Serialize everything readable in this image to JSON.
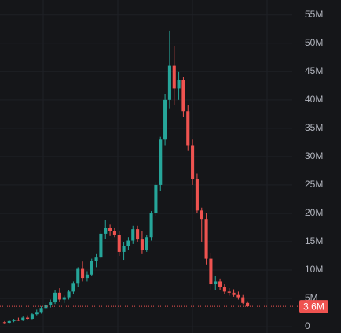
{
  "chart_data": {
    "type": "candlestick",
    "up_color": "#26a69a",
    "down_color": "#ef5350",
    "grid": true,
    "ylim": [
      -1100000,
      57600000
    ],
    "yticks": [
      {
        "value": 0,
        "label": "0"
      },
      {
        "value": 5000000,
        "label": "5M"
      },
      {
        "value": 10000000,
        "label": "10M"
      },
      {
        "value": 15000000,
        "label": "15M"
      },
      {
        "value": 20000000,
        "label": "20M"
      },
      {
        "value": 25000000,
        "label": "25M"
      },
      {
        "value": 30000000,
        "label": "30M"
      },
      {
        "value": 35000000,
        "label": "35M"
      },
      {
        "value": 40000000,
        "label": "40M"
      },
      {
        "value": 45000000,
        "label": "45M"
      },
      {
        "value": 50000000,
        "label": "50M"
      },
      {
        "value": 55000000,
        "label": "55M"
      }
    ],
    "last_price": {
      "value": 3600000,
      "label": "3.6M"
    },
    "open": [
      800000,
      700000,
      1000000,
      1200000,
      1100000,
      1600000,
      1400000,
      2200000,
      2600000,
      3300000,
      3800000,
      4300000,
      6000000,
      4800000,
      5200000,
      6200000,
      7600000,
      10200000,
      8600000,
      9200000,
      11600000,
      12200000,
      16400000,
      17400000,
      16800000,
      16200000,
      13200000,
      14200000,
      15200000,
      17200000,
      15400000,
      13600000,
      15800000,
      20000000,
      25000000,
      33000000,
      40000000,
      46000000,
      42000000,
      43500000,
      38000000,
      32000000,
      26000000,
      20500000,
      19000000,
      12000000,
      7500000,
      8000000,
      7000000,
      6200000,
      6000000,
      5600000,
      5200000,
      4200000
    ],
    "high": [
      1000000,
      1200000,
      1400000,
      1600000,
      1800000,
      2000000,
      2400000,
      3000000,
      3600000,
      4200000,
      4800000,
      6500000,
      6800000,
      5500000,
      6400000,
      8000000,
      10500000,
      11500000,
      9800000,
      12000000,
      12800000,
      17000000,
      18800000,
      18000000,
      17500000,
      16800000,
      15000000,
      15800000,
      17800000,
      17800000,
      16800000,
      16200000,
      20400000,
      25500000,
      33500000,
      41000000,
      52200000,
      49500000,
      45000000,
      44000000,
      39000000,
      33000000,
      27000000,
      21000000,
      20000000,
      13000000,
      9000000,
      8500000,
      7500000,
      6800000,
      6600000,
      6200000,
      5600000,
      4500000
    ],
    "low": [
      500000,
      600000,
      800000,
      1000000,
      1000000,
      1300000,
      1300000,
      2000000,
      2300000,
      3000000,
      3400000,
      4000000,
      4400000,
      4200000,
      4800000,
      5800000,
      7000000,
      8000000,
      8000000,
      9000000,
      10500000,
      12000000,
      15500000,
      16000000,
      15800000,
      12500000,
      11800000,
      13500000,
      14600000,
      15000000,
      12800000,
      13200000,
      15200000,
      19500000,
      24000000,
      32000000,
      38500000,
      39000000,
      40000000,
      37000000,
      31000000,
      25000000,
      20000000,
      15000000,
      11000000,
      6500000,
      6500000,
      6500000,
      5800000,
      5500000,
      5300000,
      4800000,
      4000000,
      3500000
    ],
    "close": [
      700000,
      1000000,
      1200000,
      1100000,
      1600000,
      1400000,
      2200000,
      2600000,
      3300000,
      3800000,
      4300000,
      6000000,
      4800000,
      5200000,
      6200000,
      7600000,
      10200000,
      8600000,
      9200000,
      11600000,
      12200000,
      16400000,
      17400000,
      16800000,
      16200000,
      13200000,
      14200000,
      15200000,
      17200000,
      15400000,
      13600000,
      15800000,
      20000000,
      25000000,
      33000000,
      40000000,
      46000000,
      42000000,
      43500000,
      38000000,
      32000000,
      26000000,
      20500000,
      19000000,
      12000000,
      7500000,
      8000000,
      7000000,
      6200000,
      6000000,
      5600000,
      5200000,
      4200000,
      3600000
    ]
  }
}
